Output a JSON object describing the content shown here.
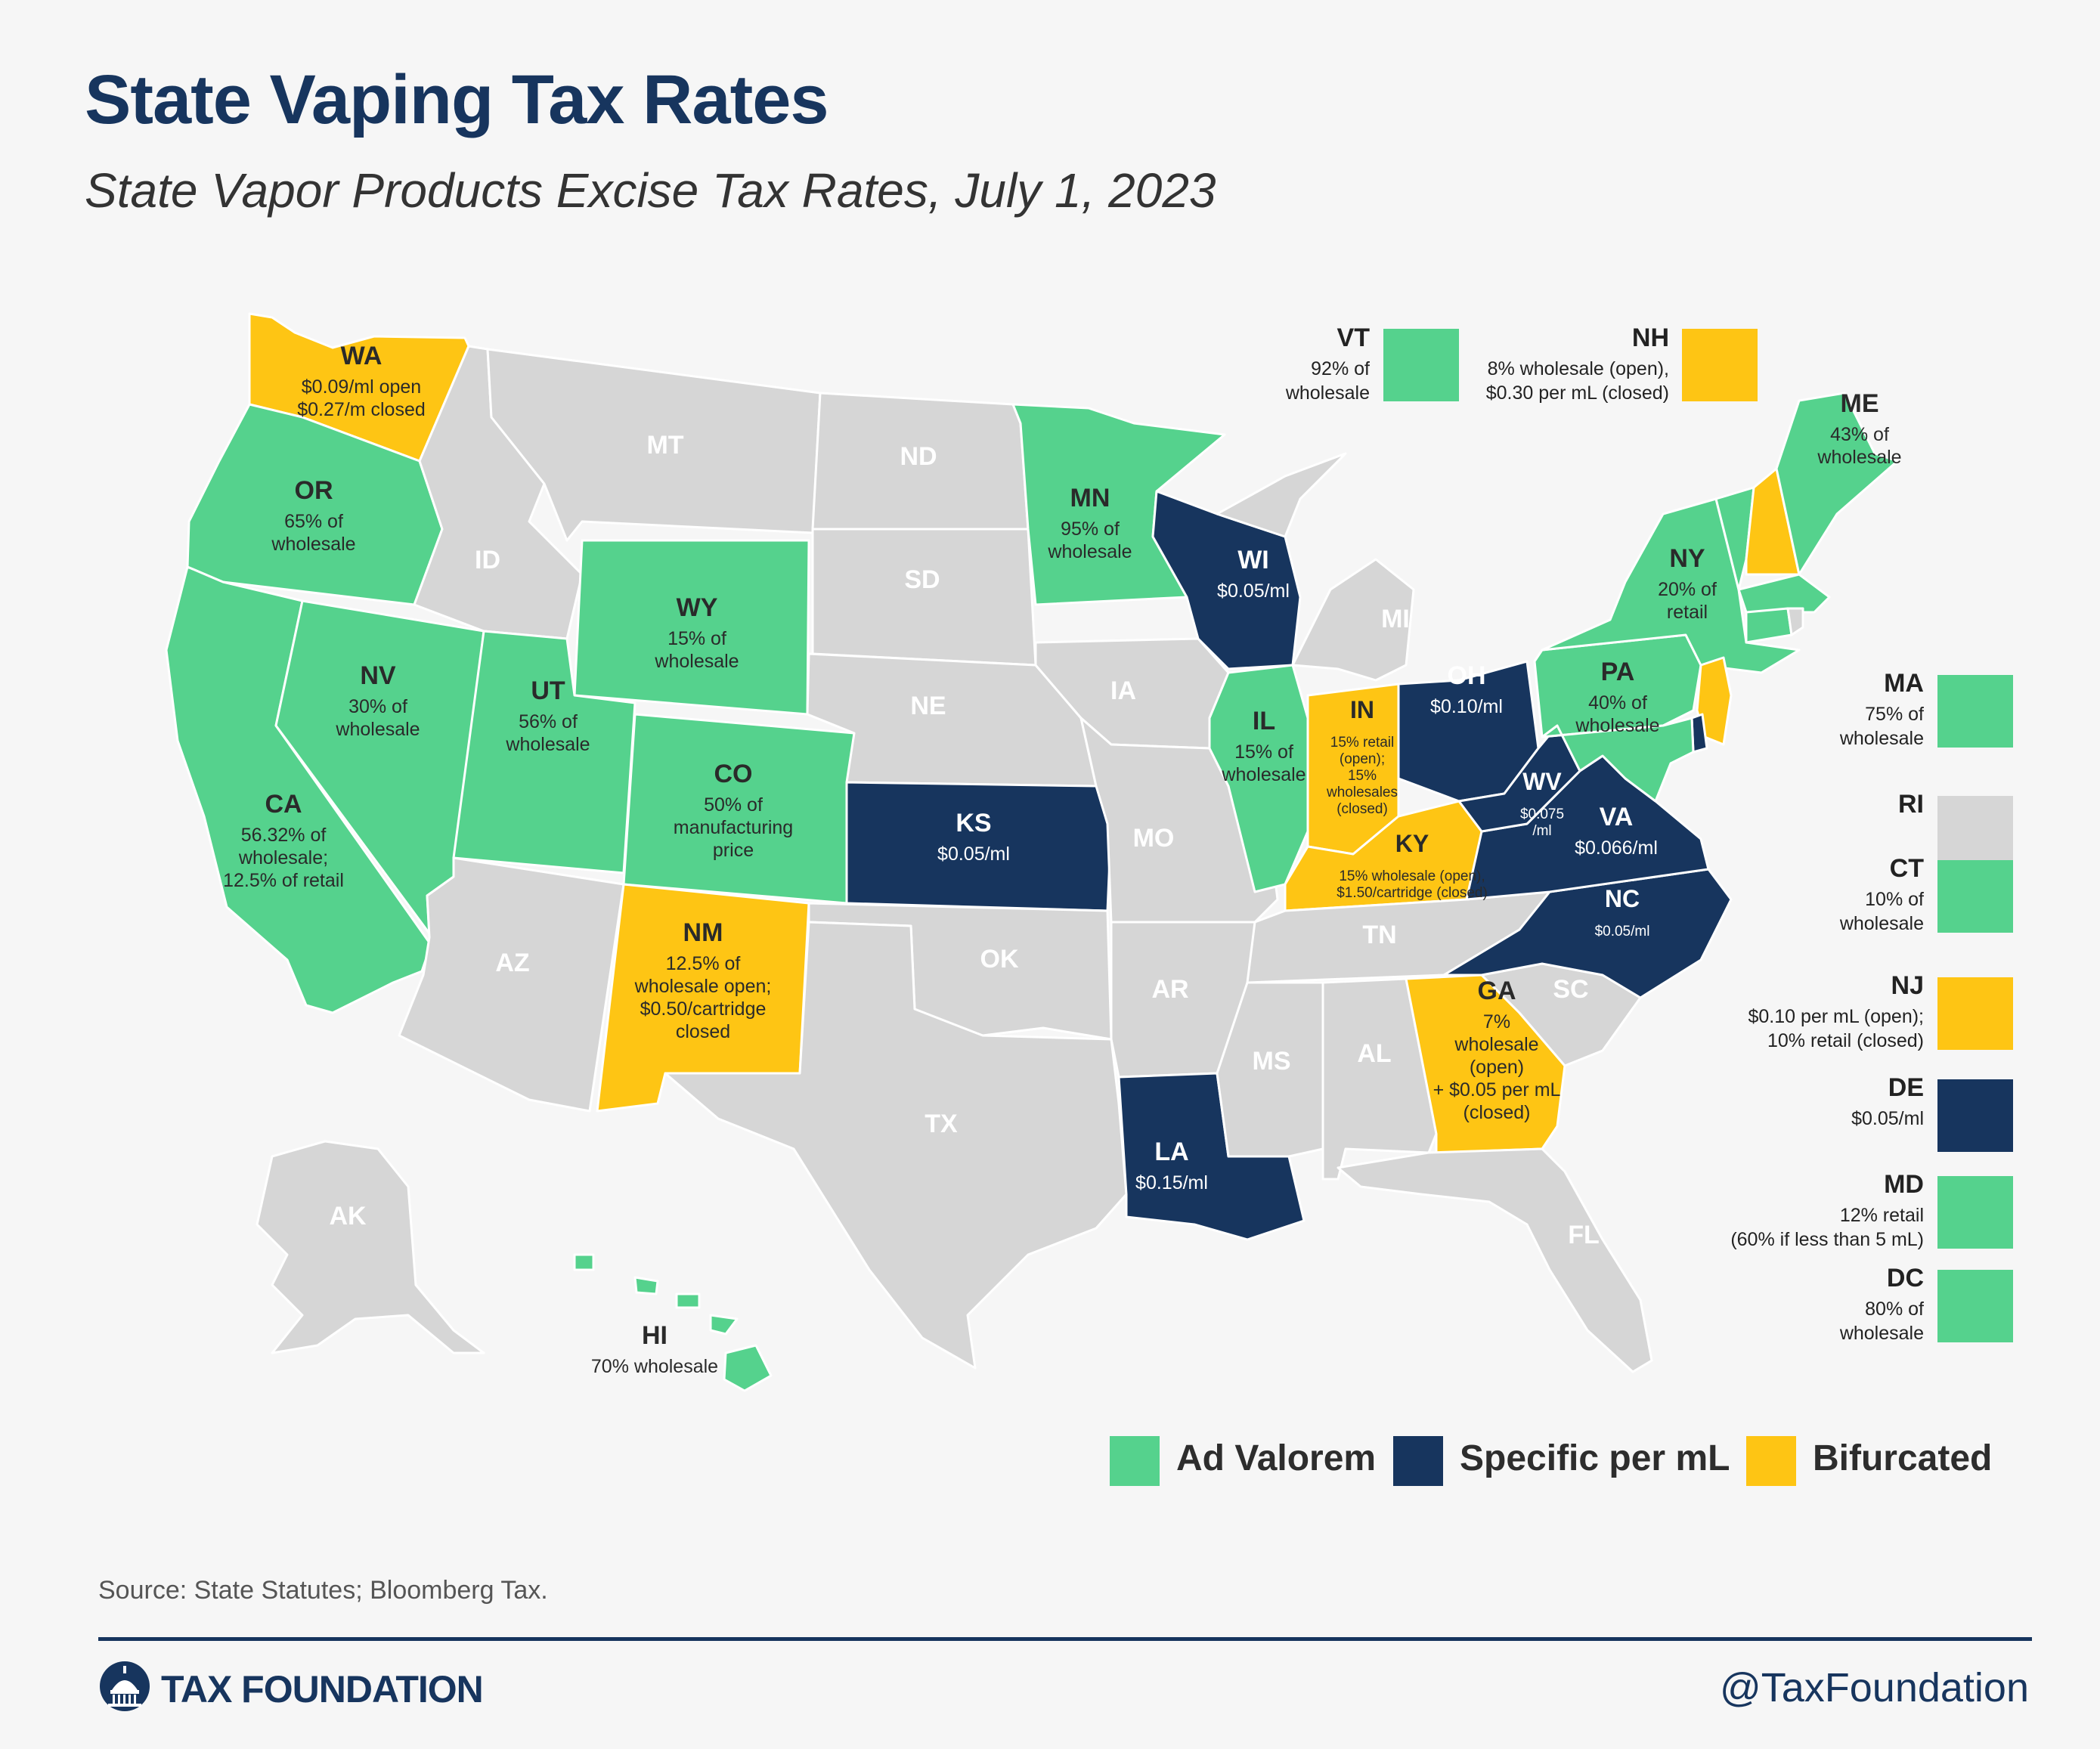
{
  "title": "State Vaping Tax Rates",
  "subtitle": "State Vapor Products Excise Tax Rates, July 1, 2023",
  "colors": {
    "ad_valorem": "#55d28d",
    "specific": "#17355e",
    "bifurcated": "#fec514",
    "none": "#d6d6d6",
    "border": "#ffffff",
    "title": "#17355e"
  },
  "states": {
    "WA": {
      "abbr": "WA",
      "category": "bifurcated",
      "lines": [
        "$0.09/ml open",
        "$0.27/m closed"
      ]
    },
    "OR": {
      "abbr": "OR",
      "category": "ad_valorem",
      "lines": [
        "65% of",
        "wholesale"
      ]
    },
    "CA": {
      "abbr": "CA",
      "category": "ad_valorem",
      "lines": [
        "56.32% of",
        "wholesale;",
        "12.5% of retail"
      ]
    },
    "NV": {
      "abbr": "NV",
      "category": "ad_valorem",
      "lines": [
        "30% of",
        "wholesale"
      ]
    },
    "ID": {
      "abbr": "ID",
      "category": "none",
      "lines": []
    },
    "MT": {
      "abbr": "MT",
      "category": "none",
      "lines": []
    },
    "WY": {
      "abbr": "WY",
      "category": "ad_valorem",
      "lines": [
        "15% of",
        "wholesale"
      ]
    },
    "UT": {
      "abbr": "UT",
      "category": "ad_valorem",
      "lines": [
        "56% of",
        "wholesale"
      ]
    },
    "CO": {
      "abbr": "CO",
      "category": "ad_valorem",
      "lines": [
        "50% of",
        "manufacturing",
        "price"
      ]
    },
    "AZ": {
      "abbr": "AZ",
      "category": "none",
      "lines": []
    },
    "NM": {
      "abbr": "NM",
      "category": "bifurcated",
      "lines": [
        "12.5% of",
        "wholesale open;",
        "$0.50/cartridge",
        "closed"
      ]
    },
    "ND": {
      "abbr": "ND",
      "category": "none",
      "lines": []
    },
    "SD": {
      "abbr": "SD",
      "category": "none",
      "lines": []
    },
    "NE": {
      "abbr": "NE",
      "category": "none",
      "lines": []
    },
    "KS": {
      "abbr": "KS",
      "category": "specific",
      "lines": [
        "$0.05/ml"
      ]
    },
    "OK": {
      "abbr": "OK",
      "category": "none",
      "lines": []
    },
    "TX": {
      "abbr": "TX",
      "category": "none",
      "lines": []
    },
    "MN": {
      "abbr": "MN",
      "category": "ad_valorem",
      "lines": [
        "95% of",
        "wholesale"
      ]
    },
    "IA": {
      "abbr": "IA",
      "category": "none",
      "lines": []
    },
    "MO": {
      "abbr": "MO",
      "category": "none",
      "lines": []
    },
    "AR": {
      "abbr": "AR",
      "category": "none",
      "lines": []
    },
    "LA": {
      "abbr": "LA",
      "category": "specific",
      "lines": [
        "$0.15/ml"
      ]
    },
    "WI": {
      "abbr": "WI",
      "category": "specific",
      "lines": [
        "$0.05/ml"
      ]
    },
    "IL": {
      "abbr": "IL",
      "category": "ad_valorem",
      "lines": [
        "15% of",
        "wholesale"
      ]
    },
    "MI": {
      "abbr": "MI",
      "category": "none",
      "lines": []
    },
    "IN": {
      "abbr": "IN",
      "category": "bifurcated",
      "lines": [
        "15% retail",
        "(open);",
        "15%",
        "wholesales",
        "(closed)"
      ]
    },
    "OH": {
      "abbr": "OH",
      "category": "specific",
      "lines": [
        "$0.10/ml"
      ]
    },
    "KY": {
      "abbr": "KY",
      "category": "bifurcated",
      "lines": [
        "15% wholesale (open),",
        "$1.50/cartridge (closed)"
      ]
    },
    "TN": {
      "abbr": "TN",
      "category": "none",
      "lines": []
    },
    "MS": {
      "abbr": "MS",
      "category": "none",
      "lines": []
    },
    "AL": {
      "abbr": "AL",
      "category": "none",
      "lines": []
    },
    "GA": {
      "abbr": "GA",
      "category": "bifurcated",
      "lines": [
        "7%",
        "wholesale",
        "(open)",
        "+ $0.05 per mL",
        "(closed)"
      ]
    },
    "FL": {
      "abbr": "FL",
      "category": "none",
      "lines": []
    },
    "SC": {
      "abbr": "SC",
      "category": "none",
      "lines": []
    },
    "NC": {
      "abbr": "NC",
      "category": "specific",
      "lines": [
        "$0.05/ml"
      ]
    },
    "VA": {
      "abbr": "VA",
      "category": "specific",
      "lines": [
        "$0.066/ml"
      ]
    },
    "WV": {
      "abbr": "WV",
      "category": "specific",
      "lines": [
        "$0.075",
        "/ml"
      ]
    },
    "PA": {
      "abbr": "PA",
      "category": "ad_valorem",
      "lines": [
        "40% of",
        "wholesale"
      ]
    },
    "NY": {
      "abbr": "NY",
      "category": "ad_valorem",
      "lines": [
        "20% of",
        "retail"
      ]
    },
    "ME": {
      "abbr": "ME",
      "category": "ad_valorem",
      "lines": [
        "43% of",
        "wholesale"
      ]
    },
    "AK": {
      "abbr": "AK",
      "category": "none",
      "lines": []
    },
    "HI": {
      "abbr": "HI",
      "category": "ad_valorem",
      "lines": [
        "70% wholesale"
      ]
    }
  },
  "top_callouts": [
    {
      "abbr": "VT",
      "category": "ad_valorem",
      "lines": [
        "92% of",
        "wholesale"
      ]
    },
    {
      "abbr": "NH",
      "category": "bifurcated",
      "lines": [
        "8% wholesale (open),",
        "$0.30 per mL (closed)"
      ]
    }
  ],
  "side_callouts": [
    {
      "abbr": "MA",
      "category": "ad_valorem",
      "lines": [
        "75% of",
        "wholesale"
      ]
    },
    {
      "abbr": "RI",
      "category": "none",
      "lines": []
    },
    {
      "abbr": "CT",
      "category": "ad_valorem",
      "lines": [
        "10% of",
        "wholesale"
      ]
    },
    {
      "abbr": "NJ",
      "category": "bifurcated",
      "lines": [
        "$0.10 per mL (open);",
        "10% retail (closed)"
      ]
    },
    {
      "abbr": "DE",
      "category": "specific",
      "lines": [
        "$0.05/ml"
      ]
    },
    {
      "abbr": "MD",
      "category": "ad_valorem",
      "lines": [
        "12% retail",
        "(60% if less than 5 mL)"
      ]
    },
    {
      "abbr": "DC",
      "category": "ad_valorem",
      "lines": [
        "80% of",
        "wholesale"
      ]
    }
  ],
  "legend": [
    {
      "label": "Ad Valorem",
      "category": "ad_valorem"
    },
    {
      "label": "Specific per mL",
      "category": "specific"
    },
    {
      "label": "Bifurcated",
      "category": "bifurcated"
    }
  ],
  "source": "Source: State Statutes; Bloomberg Tax.",
  "brand": "TAX FOUNDATION",
  "handle": "@TaxFoundation"
}
